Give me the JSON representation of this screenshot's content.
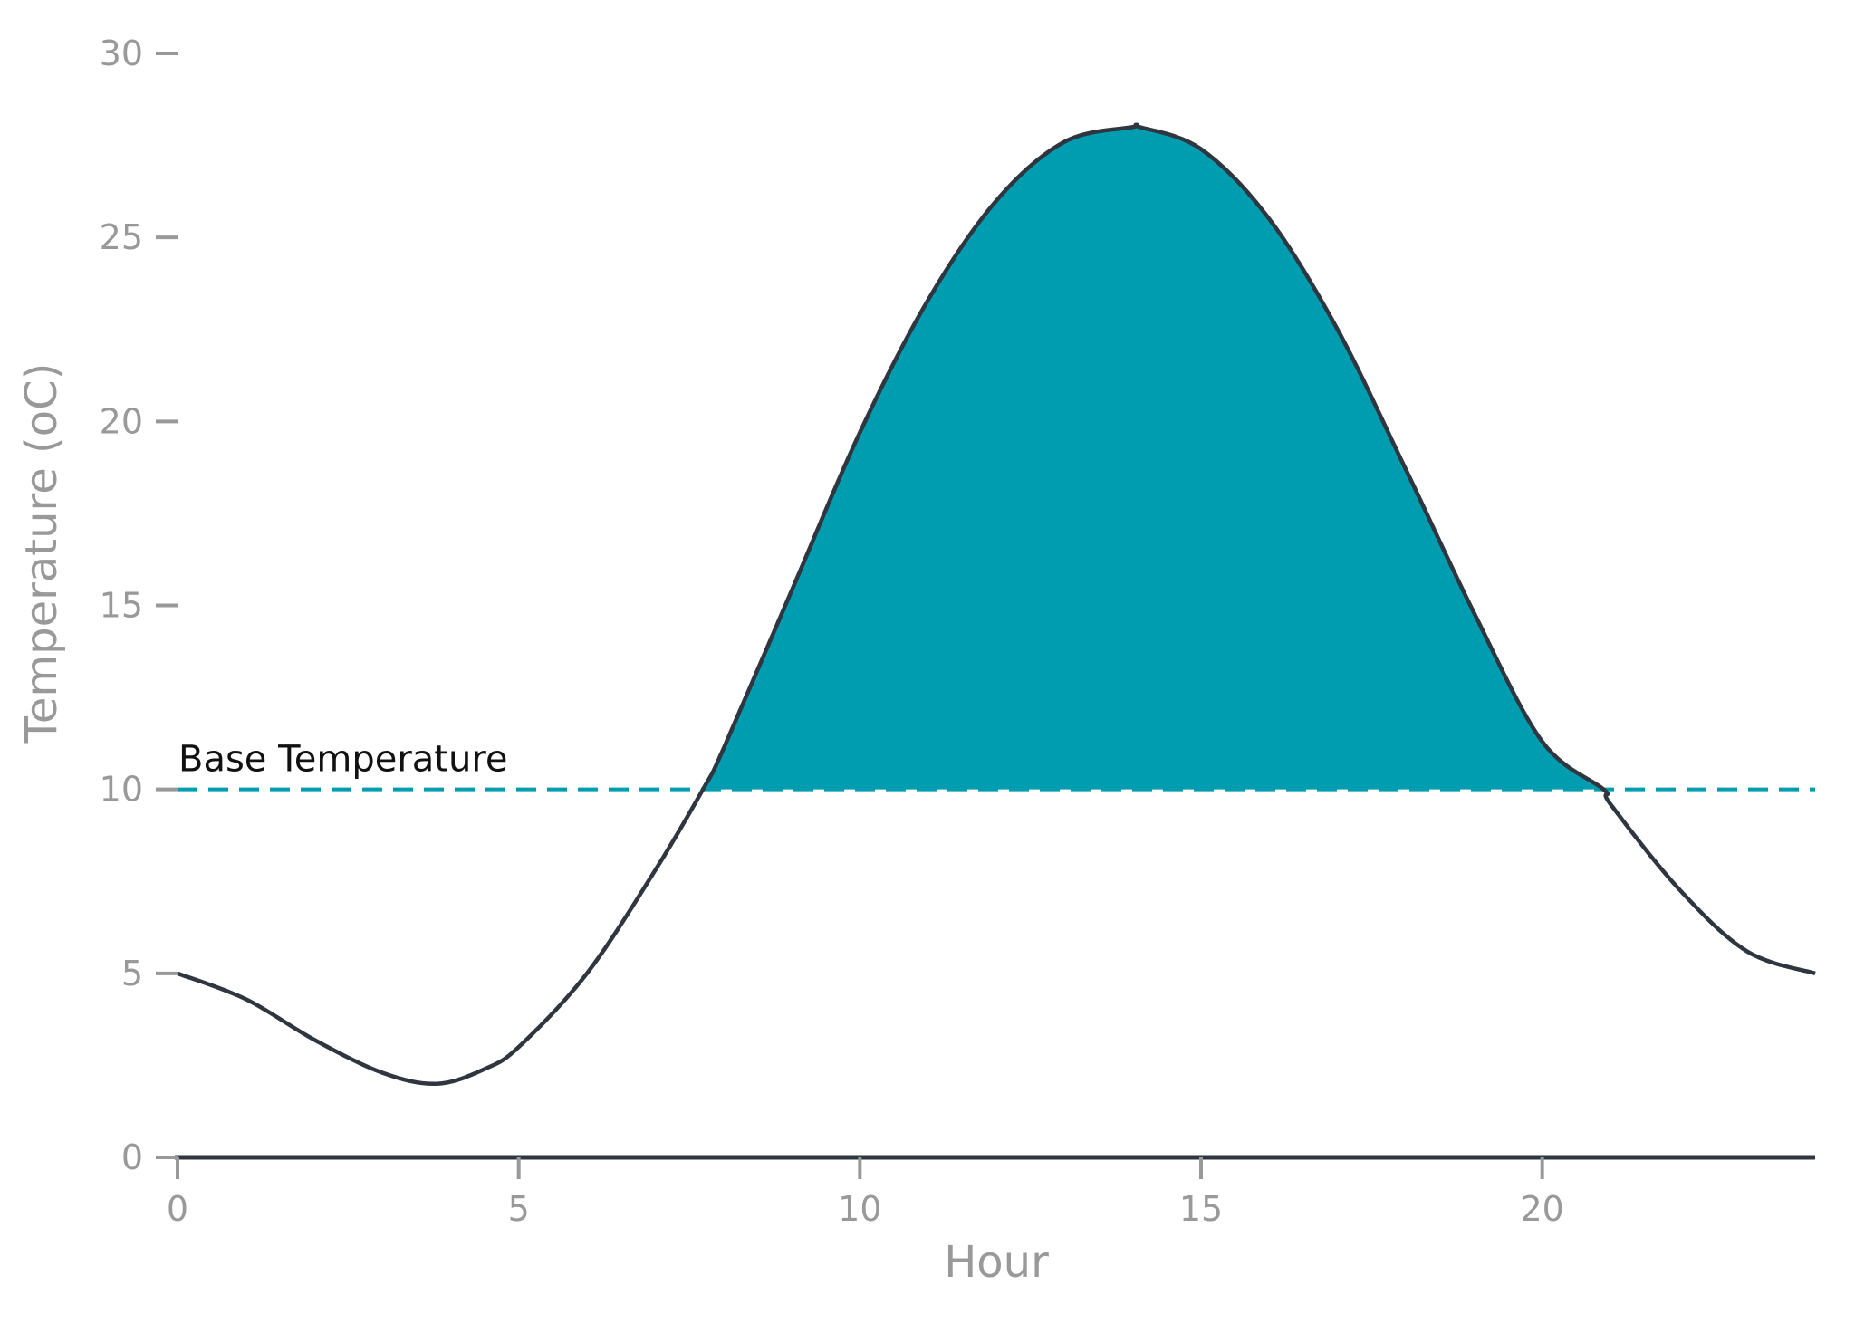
{
  "chart_data": {
    "type": "line",
    "title": "",
    "xlabel": "Hour",
    "ylabel": "Temperature (oC)",
    "xlim": [
      0,
      24
    ],
    "ylim": [
      0,
      30
    ],
    "xticks": [
      0,
      5,
      10,
      15,
      20
    ],
    "yticks": [
      0,
      5,
      10,
      15,
      20,
      25,
      30
    ],
    "grid": false,
    "series": [
      {
        "x": [
          0,
          1,
          2,
          3,
          3.8,
          4.5,
          5,
          6,
          7,
          7.7,
          8,
          9,
          10,
          11,
          12,
          13,
          14,
          14.1,
          15,
          16,
          17,
          18,
          19,
          20,
          20.9,
          21,
          22,
          23,
          24
        ],
        "values": [
          5.0,
          4.3,
          3.2,
          2.3,
          2.0,
          2.4,
          3.0,
          5.0,
          7.8,
          10.0,
          11.1,
          15.4,
          19.7,
          23.3,
          26.0,
          27.6,
          28.0,
          28.0,
          27.4,
          25.5,
          22.5,
          18.7,
          14.8,
          11.3,
          10.0,
          9.6,
          7.3,
          5.6,
          5.0
        ],
        "color": "#2f3640"
      }
    ],
    "reference_line": {
      "label": "Base Temperature",
      "y": 10,
      "style": "dashed",
      "color": "#009db0"
    },
    "shaded_region": {
      "x_start": 7.7,
      "x_end": 20.9,
      "above": 10,
      "color": "#009db0"
    }
  }
}
